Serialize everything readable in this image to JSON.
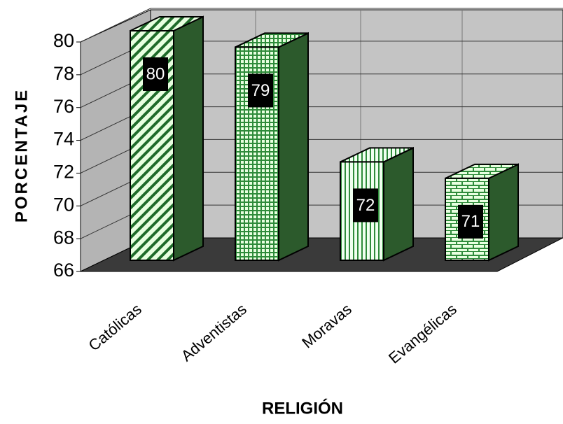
{
  "chart_data": {
    "type": "bar3d",
    "categories": [
      "Católicas",
      "Adventistas",
      "Moravas",
      "Evangélicas"
    ],
    "values": [
      80,
      79,
      72,
      71
    ],
    "ylim": [
      66,
      80
    ],
    "yticks": [
      66,
      68,
      70,
      72,
      74,
      76,
      78,
      80
    ],
    "ylabel": "PORCENTAJE",
    "xlabel": "RELIGIÓN",
    "color": "#2e7d32",
    "grid": true
  }
}
